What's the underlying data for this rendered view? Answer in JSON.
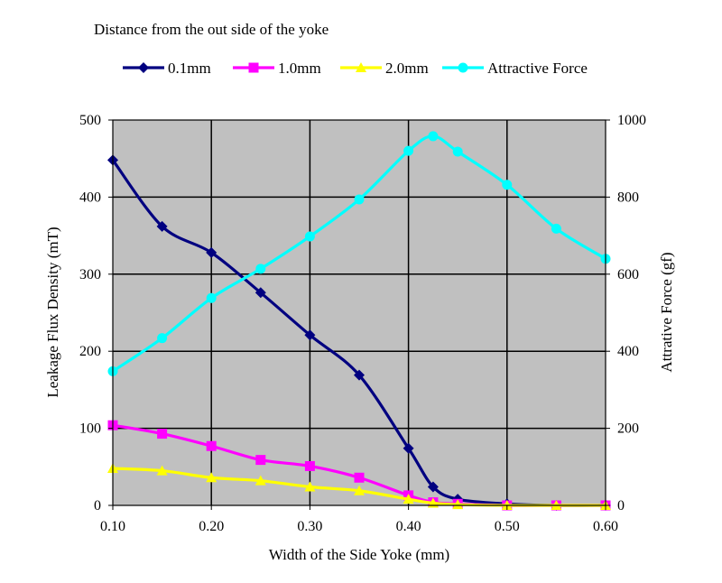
{
  "chart_data": {
    "type": "line",
    "title": "Distance from the out side of the yoke",
    "xlabel": "Width of the Side Yoke (mm)",
    "ylabel": "Leakage Flux Density (mT)",
    "y2label": "Attrative Force (gf)",
    "xlim": [
      0.1,
      0.6
    ],
    "ylim": [
      0,
      500
    ],
    "y2lim": [
      0,
      1000
    ],
    "grid": true,
    "legend_position": "top",
    "plot_background": "#c0c0c0",
    "x_ticks": [
      "0.10",
      "0.20",
      "0.30",
      "0.40",
      "0.50",
      "0.60"
    ],
    "y_ticks": [
      "0",
      "100",
      "200",
      "300",
      "400",
      "500"
    ],
    "y2_ticks": [
      "0",
      "200",
      "400",
      "600",
      "800",
      "1000"
    ],
    "series": [
      {
        "name": "0.1mm",
        "axis": "left",
        "color": "#000080",
        "marker": "diamond",
        "x": [
          0.1,
          0.15,
          0.2,
          0.25,
          0.3,
          0.35,
          0.4,
          0.425,
          0.45,
          0.5,
          0.55,
          0.6
        ],
        "y": [
          448,
          362,
          328,
          276,
          221,
          169,
          74,
          24,
          8,
          2,
          0,
          0
        ]
      },
      {
        "name": "1.0mm",
        "axis": "left",
        "color": "#ff00ff",
        "marker": "square",
        "x": [
          0.1,
          0.15,
          0.2,
          0.25,
          0.3,
          0.35,
          0.4,
          0.425,
          0.45,
          0.5,
          0.55,
          0.6
        ],
        "y": [
          104,
          93,
          77,
          59,
          51,
          36,
          13,
          4,
          2,
          0,
          0,
          0
        ]
      },
      {
        "name": "2.0mm",
        "axis": "left",
        "color": "#ffff00",
        "marker": "triangle",
        "x": [
          0.1,
          0.15,
          0.2,
          0.25,
          0.3,
          0.35,
          0.4,
          0.425,
          0.45,
          0.5,
          0.55,
          0.6
        ],
        "y": [
          48,
          45,
          36,
          32,
          24,
          19,
          8,
          3,
          1,
          0,
          0,
          0
        ]
      },
      {
        "name": "Attractive Force",
        "axis": "right",
        "color": "#00ffff",
        "marker": "circle",
        "x": [
          0.1,
          0.15,
          0.2,
          0.25,
          0.3,
          0.35,
          0.4,
          0.425,
          0.45,
          0.5,
          0.55,
          0.6
        ],
        "y": [
          348,
          434,
          538,
          614,
          698,
          794,
          920,
          958,
          918,
          832,
          718,
          640
        ]
      }
    ]
  }
}
